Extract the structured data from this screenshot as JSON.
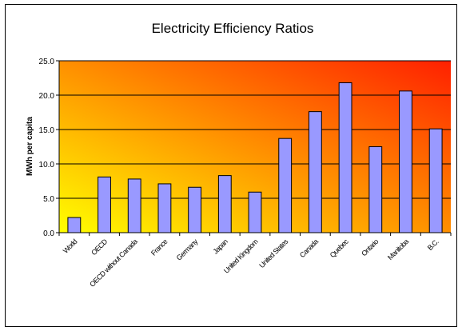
{
  "chart_data": {
    "type": "bar",
    "title": "Electricity Efficiency Ratios",
    "xlabel": "",
    "ylabel": "MWh per capita",
    "ylim": [
      0,
      25
    ],
    "yticks": [
      "0.0",
      "5.0",
      "10.0",
      "15.0",
      "20.0",
      "25.0"
    ],
    "grid": "horizontal",
    "categories": [
      "World",
      "OECD",
      "OECD without Canada",
      "France",
      "Germany",
      "Japan",
      "United Kingdom",
      "United States",
      "Canada",
      "Quebec",
      "Ontario",
      "Manitoba",
      "B.C."
    ],
    "values": [
      2.2,
      8.1,
      7.8,
      7.1,
      6.6,
      8.3,
      5.9,
      13.7,
      17.6,
      21.8,
      12.5,
      20.6,
      15.1
    ],
    "colors": {
      "bar_fill": "#9999ff",
      "bar_stroke": "#000000",
      "plot_gradient_start": "#ffff00",
      "plot_gradient_end": "#ff2000",
      "gridline": "#000000"
    }
  }
}
